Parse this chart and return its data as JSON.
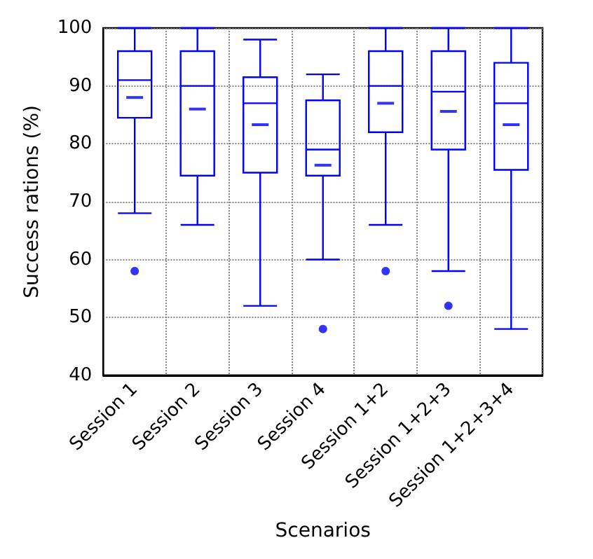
{
  "chart_data": {
    "type": "box",
    "xlabel": "Scenarios",
    "ylabel": "Success rations (%)",
    "categories": [
      "Session 1",
      "Session 2",
      "Session 3",
      "Session 4",
      "Session 1+2",
      "Session 1+2+3",
      "Session 1+2+3+4"
    ],
    "color": "#0000ff",
    "boxes": [
      {
        "low": 68,
        "q1": 84.5,
        "median": 91,
        "q3": 96,
        "high": 100,
        "mean": 88,
        "outliers": [
          58
        ]
      },
      {
        "low": 66,
        "q1": 74.5,
        "median": 90,
        "q3": 96,
        "high": 100,
        "mean": 86
      },
      {
        "low": 52,
        "q1": 75,
        "median": 87,
        "q3": 91.5,
        "high": 98,
        "mean": 83.3
      },
      {
        "low": 60,
        "q1": 74.5,
        "median": 79,
        "q3": 87.5,
        "high": 92,
        "mean": 76.3,
        "outliers": [
          48
        ]
      },
      {
        "low": 66,
        "q1": 82,
        "median": 90,
        "q3": 96,
        "high": 100,
        "mean": 87,
        "outliers": [
          58
        ]
      },
      {
        "low": 58,
        "q1": 79,
        "median": 89,
        "q3": 96,
        "high": 100,
        "mean": 85.6,
        "outliers": [
          52
        ]
      },
      {
        "low": 48,
        "q1": 75.5,
        "median": 87,
        "q3": 94,
        "high": 100,
        "mean": 83.3
      }
    ],
    "ylim": [
      40,
      100
    ],
    "yticks": [
      40,
      50,
      60,
      70,
      80,
      90,
      100
    ],
    "grid": true
  }
}
